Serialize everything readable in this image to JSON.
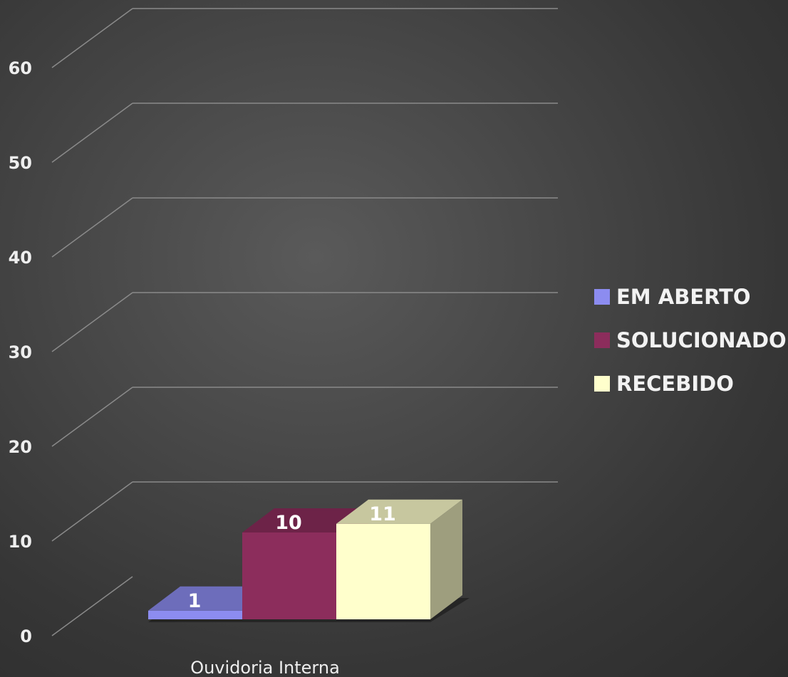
{
  "chart_data": {
    "type": "bar",
    "categories": [
      "Ouvidoria Interna"
    ],
    "series": [
      {
        "name": "EM ABERTO",
        "values": [
          1
        ],
        "color": "#8c8cf0"
      },
      {
        "name": "SOLUCIONADO",
        "values": [
          10
        ],
        "color": "#8c2d5c"
      },
      {
        "name": "RECEBIDO",
        "values": [
          11
        ],
        "color": "#ffffcc"
      }
    ],
    "ylim": [
      0,
      60
    ],
    "yticks": [
      0,
      10,
      20,
      30,
      40,
      50,
      60
    ],
    "grid": true,
    "legend_position": "right",
    "three_d": true
  }
}
